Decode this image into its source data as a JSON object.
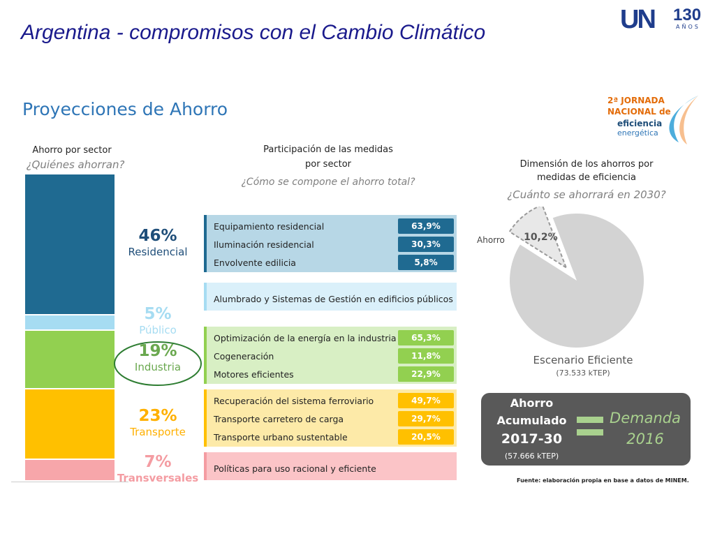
{
  "slide_title": "Argentina - compromisos con el Cambio Climático",
  "logo": {
    "mark": "UN",
    "number": "130",
    "subtitle": "AÑOS"
  },
  "section_title": "Proyecciones de Ahorro",
  "jornada_logo": {
    "line1": "2ª JORNADA",
    "line2": "NACIONAL de",
    "line3": "eficiencia",
    "line4": "energética"
  },
  "left_panel": {
    "title": "Ahorro por sector",
    "question": "¿Quiénes ahorran?"
  },
  "middle_panel": {
    "title_line1": "Participación de las medidas",
    "title_line2": "por sector",
    "question": "¿Cómo se compone el ahorro total?"
  },
  "right_panel": {
    "title_line1": "Dimensión de los ahorros por",
    "title_line2": "medidas de eficiencia",
    "question": "¿Cuánto se ahorrará en 2030?"
  },
  "chart_data": [
    {
      "type": "bar",
      "stacked": true,
      "title": "Ahorro por sector",
      "categories": [
        "Residencial",
        "Público",
        "Industria",
        "Transporte",
        "Transversales"
      ],
      "values": [
        46,
        5,
        19,
        23,
        7
      ],
      "value_labels": [
        "46%",
        "5%",
        "19%",
        "23%",
        "7%"
      ],
      "unit": "%",
      "colors": [
        "#1f6a91",
        "#a6dcf2",
        "#92d050",
        "#ffc000",
        "#f7a6aa"
      ],
      "label_colors": [
        "#1f4e79",
        "#a6dcf2",
        "#6aa84f",
        "#ffb000",
        "#f49ca2"
      ],
      "highlighted_category": "Industria",
      "highlight_color": "#2e7d32"
    },
    {
      "type": "table",
      "title": "Participación de las medidas por sector",
      "groups": [
        {
          "sector": "Residencial",
          "color": "#b7d7e6",
          "bracket_color": "#1f6a91",
          "badge_color": "#1f6a91",
          "rows": [
            {
              "label": "Equipamiento residencial",
              "value": "63,9%"
            },
            {
              "label": "Iluminación residencial",
              "value": "30,3%"
            },
            {
              "label": "Envolvente edilicia",
              "value": "5,8%"
            }
          ]
        },
        {
          "sector": "Público",
          "color": "#daf0fa",
          "bracket_color": "#a6dcf2",
          "badge_color": "",
          "rows": [
            {
              "label": "Alumbrado y Sistemas de Gestión en edificios públicos",
              "value": ""
            }
          ]
        },
        {
          "sector": "Industria",
          "color": "#d8efc4",
          "bracket_color": "#92d050",
          "badge_color": "#92d050",
          "rows": [
            {
              "label": "Optimización de la energía en la industria",
              "value": "65,3%"
            },
            {
              "label": "Cogeneración",
              "value": "11,8%"
            },
            {
              "label": "Motores eficientes",
              "value": "22,9%"
            }
          ]
        },
        {
          "sector": "Transporte",
          "color": "#fdeaa8",
          "bracket_color": "#ffc000",
          "badge_color": "#ffc000",
          "rows": [
            {
              "label": "Recuperación del sistema ferroviario",
              "value": "49,7%"
            },
            {
              "label": "Transporte carretero de carga",
              "value": "29,7%"
            },
            {
              "label": "Transporte urbano sustentable",
              "value": "20,5%"
            }
          ]
        },
        {
          "sector": "Transversales",
          "color": "#fbc4c7",
          "bracket_color": "#f49ca2",
          "badge_color": "",
          "rows": [
            {
              "label": "Políticas para uso racional y eficiente",
              "value": ""
            }
          ]
        }
      ]
    },
    {
      "type": "pie",
      "title": "Dimensión de los ahorros por medidas de eficiencia",
      "slices": [
        {
          "name": "Ahorro",
          "value": 10.2,
          "label": "10,2%",
          "color": "#e8e8e8",
          "exploded": true
        },
        {
          "name": "Escenario Eficiente",
          "value": 89.8,
          "label": "",
          "color": "#d3d3d3",
          "exploded": false
        }
      ],
      "caption": "Escenario Eficiente",
      "caption_sub": "(73.533 kTEP)",
      "ahorro_label": "Ahorro"
    }
  ],
  "acumulado_box": {
    "line1": "Ahorro",
    "line2": "Acumulado",
    "line3": "2017-30",
    "line4": "(57.666 kTEP)",
    "equals_text": "=",
    "demanda_line1": "Demanda",
    "demanda_line2": "2016",
    "accent_color": "#a9d18e"
  },
  "source": "Fuente: elaboración propia en base a datos de MINEM."
}
